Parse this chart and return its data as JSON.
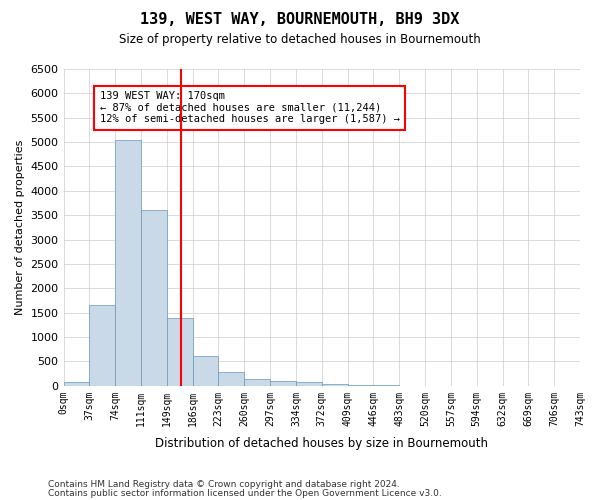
{
  "title": "139, WEST WAY, BOURNEMOUTH, BH9 3DX",
  "subtitle": "Size of property relative to detached houses in Bournemouth",
  "xlabel": "Distribution of detached houses by size in Bournemouth",
  "ylabel": "Number of detached properties",
  "bin_labels": [
    "0sqm",
    "37sqm",
    "74sqm",
    "111sqm",
    "149sqm",
    "186sqm",
    "223sqm",
    "260sqm",
    "297sqm",
    "334sqm",
    "372sqm",
    "409sqm",
    "446sqm",
    "483sqm",
    "520sqm",
    "557sqm",
    "594sqm",
    "632sqm",
    "669sqm",
    "706sqm",
    "743sqm"
  ],
  "bar_values": [
    70,
    1650,
    5050,
    3600,
    1400,
    620,
    290,
    145,
    100,
    75,
    40,
    20,
    10,
    5,
    3,
    2,
    1,
    1,
    1,
    0
  ],
  "bar_color": "#c9d9e8",
  "bar_edge_color": "#6699bb",
  "grid_color": "#cccccc",
  "vline_color": "red",
  "annotation_text": "139 WEST WAY: 170sqm\n← 87% of detached houses are smaller (11,244)\n12% of semi-detached houses are larger (1,587) →",
  "annotation_box_color": "white",
  "annotation_box_edge": "red",
  "ylim": [
    0,
    6500
  ],
  "yticks": [
    0,
    500,
    1000,
    1500,
    2000,
    2500,
    3000,
    3500,
    4000,
    4500,
    5000,
    5500,
    6000,
    6500
  ],
  "footer1": "Contains HM Land Registry data © Crown copyright and database right 2024.",
  "footer2": "Contains public sector information licensed under the Open Government Licence v3.0."
}
